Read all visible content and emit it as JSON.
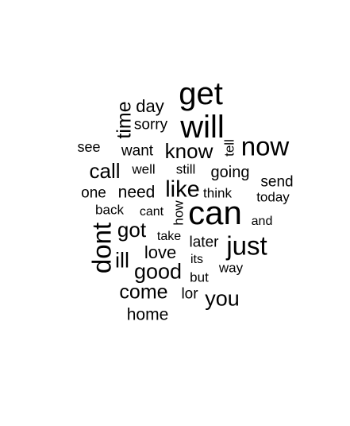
{
  "words": {
    "get": "get",
    "will": "will",
    "now": "now",
    "can": "can",
    "just": "just",
    "dont": "dont",
    "know": "know",
    "like": "like",
    "call": "call",
    "good": "good",
    "come": "come",
    "got": "got",
    "you": "you",
    "time": "time",
    "day": "day",
    "sorry": "sorry",
    "want": "want",
    "see": "see",
    "tell": "tell",
    "well": "well",
    "still": "still",
    "going": "going",
    "send": "send",
    "one": "one",
    "need": "need",
    "think": "think",
    "today": "today",
    "back": "back",
    "cant": "cant",
    "how": "how",
    "and": "and",
    "take": "take",
    "later": "later",
    "love": "love",
    "ill": "ill",
    "its": "its",
    "way": "way",
    "but": "but",
    "lor": "lor",
    "home": "home"
  }
}
